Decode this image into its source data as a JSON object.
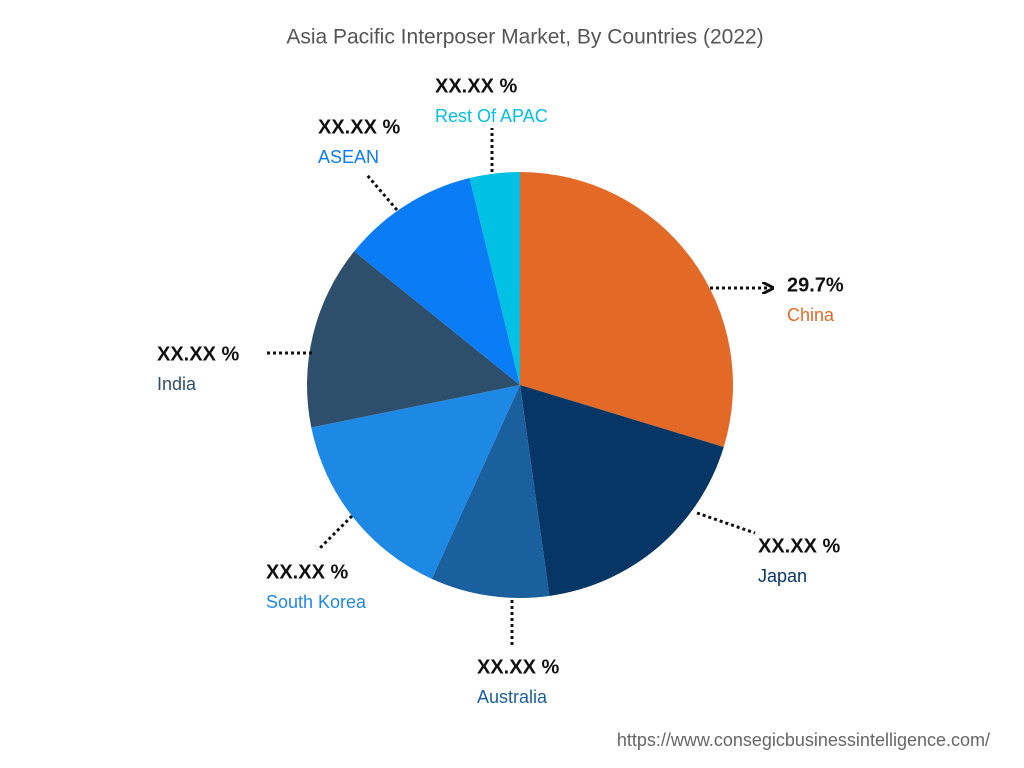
{
  "chart_data": {
    "type": "pie",
    "title": "Asia Pacific Interposer Market, By Countries (2022)",
    "categories": [
      "China",
      "Japan",
      "Australia",
      "South Korea",
      "India",
      "ASEAN",
      "Rest Of APAC"
    ],
    "values": [
      29.7,
      18.1,
      9.0,
      15.0,
      14.0,
      10.4,
      3.8
    ],
    "value_labels": [
      "29.7%",
      "XX.XX %",
      "XX.XX %",
      "XX.XX %",
      "XX.XX %",
      "XX.XX %",
      "XX.XX %"
    ],
    "colors": [
      "#e36a26",
      "#063665",
      "#1a5f9e",
      "#1e88e5",
      "#2e4f6b",
      "#0a7cf5",
      "#00c0e4"
    ],
    "source": "https://www.consegicbusinessintelligence.com/"
  }
}
